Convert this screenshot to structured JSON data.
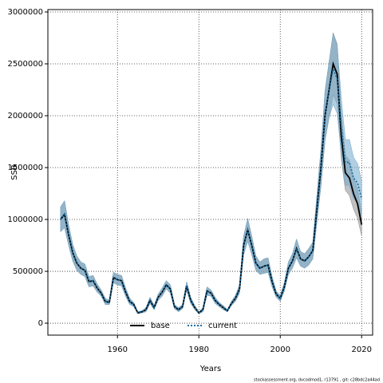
{
  "chart_data": {
    "type": "line",
    "xlabel": "Years",
    "ylabel": "SSB",
    "footnote": "stockassessment.org, dvcodmod1, r13791 , git: c28bdc2a44ad",
    "xlim": [
      1942.9,
      2022.7
    ],
    "ylim": [
      -115000,
      3023000
    ],
    "xticks": [
      1960,
      1980,
      2000,
      2020
    ],
    "yticks": [
      0,
      500000,
      1000000,
      1500000,
      2000000,
      2500000,
      3000000
    ],
    "grid": true,
    "legend": "bottom",
    "x": [
      1946,
      1947,
      1948,
      1949,
      1950,
      1951,
      1952,
      1953,
      1954,
      1955,
      1956,
      1957,
      1958,
      1959,
      1960,
      1961,
      1962,
      1963,
      1964,
      1965,
      1966,
      1967,
      1968,
      1969,
      1970,
      1971,
      1972,
      1973,
      1974,
      1975,
      1976,
      1977,
      1978,
      1979,
      1980,
      1981,
      1982,
      1983,
      1984,
      1985,
      1986,
      1987,
      1988,
      1989,
      1990,
      1991,
      1992,
      1993,
      1994,
      1995,
      1996,
      1997,
      1998,
      1999,
      2000,
      2001,
      2002,
      2003,
      2004,
      2005,
      2006,
      2007,
      2008,
      2009,
      2010,
      2011,
      2012,
      2013,
      2014,
      2015,
      2016,
      2017,
      2018,
      2019,
      2020
    ],
    "series": [
      {
        "name": "base",
        "color": "#000000",
        "band_color": "#8c8c8c",
        "dash": "solid",
        "values": [
          1000000,
          1050000,
          850000,
          680000,
          580000,
          530000,
          510000,
          400000,
          410000,
          340000,
          290000,
          210000,
          200000,
          440000,
          420000,
          410000,
          300000,
          210000,
          180000,
          100000,
          110000,
          130000,
          220000,
          150000,
          250000,
          300000,
          370000,
          330000,
          160000,
          130000,
          160000,
          360000,
          220000,
          150000,
          100000,
          130000,
          310000,
          290000,
          220000,
          180000,
          150000,
          120000,
          190000,
          240000,
          330000,
          750000,
          900000,
          750000,
          580000,
          530000,
          550000,
          560000,
          400000,
          280000,
          240000,
          350000,
          530000,
          600000,
          720000,
          620000,
          600000,
          640000,
          700000,
          1100000,
          1500000,
          2000000,
          2250000,
          2500000,
          2400000,
          1800000,
          1450000,
          1400000,
          1250000,
          1150000,
          950000
        ],
        "lower": [
          880000,
          920000,
          750000,
          600000,
          510000,
          470000,
          450000,
          350000,
          360000,
          300000,
          260000,
          180000,
          180000,
          390000,
          370000,
          360000,
          260000,
          180000,
          160000,
          90000,
          100000,
          110000,
          190000,
          130000,
          220000,
          260000,
          330000,
          290000,
          140000,
          110000,
          140000,
          320000,
          190000,
          130000,
          90000,
          110000,
          270000,
          260000,
          190000,
          160000,
          130000,
          110000,
          170000,
          210000,
          290000,
          660000,
          790000,
          660000,
          510000,
          470000,
          480000,
          490000,
          350000,
          250000,
          210000,
          310000,
          470000,
          530000,
          630000,
          550000,
          530000,
          560000,
          620000,
          970000,
          1320000,
          1760000,
          1980000,
          2200000,
          2110000,
          1580000,
          1280000,
          1230000,
          1100000,
          1010000,
          840000
        ],
        "upper": [
          1120000,
          1180000,
          950000,
          760000,
          650000,
          590000,
          570000,
          450000,
          460000,
          380000,
          320000,
          240000,
          220000,
          490000,
          470000,
          460000,
          340000,
          240000,
          200000,
          110000,
          120000,
          150000,
          250000,
          170000,
          280000,
          340000,
          410000,
          370000,
          180000,
          150000,
          180000,
          400000,
          250000,
          170000,
          110000,
          150000,
          350000,
          320000,
          250000,
          200000,
          170000,
          130000,
          210000,
          270000,
          370000,
          840000,
          1010000,
          840000,
          650000,
          590000,
          620000,
          630000,
          450000,
          310000,
          270000,
          390000,
          590000,
          670000,
          810000,
          690000,
          670000,
          720000,
          780000,
          1230000,
          1680000,
          2240000,
          2520000,
          2800000,
          2690000,
          2020000,
          1620000,
          1570000,
          1400000,
          1290000,
          1060000
        ]
      },
      {
        "name": "current",
        "color": "#1a6fa3",
        "band_color": "#6fa8cc",
        "dash": "dotted",
        "values": [
          1000000,
          1050000,
          850000,
          680000,
          580000,
          530000,
          510000,
          400000,
          410000,
          340000,
          290000,
          210000,
          200000,
          440000,
          420000,
          410000,
          300000,
          210000,
          180000,
          100000,
          110000,
          130000,
          220000,
          150000,
          250000,
          300000,
          370000,
          330000,
          160000,
          130000,
          160000,
          360000,
          220000,
          150000,
          100000,
          130000,
          310000,
          290000,
          220000,
          180000,
          150000,
          120000,
          190000,
          240000,
          330000,
          750000,
          900000,
          750000,
          580000,
          530000,
          550000,
          560000,
          400000,
          280000,
          240000,
          350000,
          530000,
          600000,
          720000,
          620000,
          600000,
          640000,
          700000,
          1100000,
          1500000,
          2000000,
          2250000,
          2450000,
          2350000,
          1900000,
          1550000,
          1550000,
          1400000,
          1350000,
          1200000
        ],
        "lower": [
          880000,
          920000,
          750000,
          600000,
          510000,
          470000,
          450000,
          350000,
          360000,
          300000,
          260000,
          180000,
          180000,
          390000,
          370000,
          360000,
          260000,
          180000,
          160000,
          90000,
          100000,
          110000,
          190000,
          130000,
          220000,
          260000,
          330000,
          290000,
          140000,
          110000,
          140000,
          320000,
          190000,
          130000,
          90000,
          110000,
          270000,
          260000,
          190000,
          160000,
          130000,
          110000,
          170000,
          210000,
          290000,
          660000,
          790000,
          660000,
          510000,
          470000,
          480000,
          490000,
          350000,
          250000,
          210000,
          310000,
          470000,
          530000,
          630000,
          550000,
          530000,
          560000,
          620000,
          970000,
          1320000,
          1760000,
          1980000,
          2110000,
          2020000,
          1630000,
          1330000,
          1330000,
          1200000,
          1160000,
          1030000
        ],
        "upper": [
          1120000,
          1180000,
          950000,
          760000,
          650000,
          590000,
          570000,
          450000,
          460000,
          380000,
          320000,
          240000,
          220000,
          490000,
          470000,
          460000,
          340000,
          240000,
          200000,
          110000,
          120000,
          150000,
          250000,
          170000,
          280000,
          340000,
          410000,
          370000,
          180000,
          150000,
          180000,
          400000,
          250000,
          170000,
          110000,
          150000,
          350000,
          320000,
          250000,
          200000,
          170000,
          130000,
          210000,
          270000,
          370000,
          840000,
          1010000,
          840000,
          650000,
          590000,
          620000,
          630000,
          450000,
          310000,
          270000,
          390000,
          590000,
          670000,
          810000,
          690000,
          670000,
          720000,
          780000,
          1230000,
          1680000,
          2240000,
          2520000,
          2790000,
          2680000,
          2170000,
          1770000,
          1770000,
          1600000,
          1540000,
          1370000
        ]
      }
    ]
  }
}
